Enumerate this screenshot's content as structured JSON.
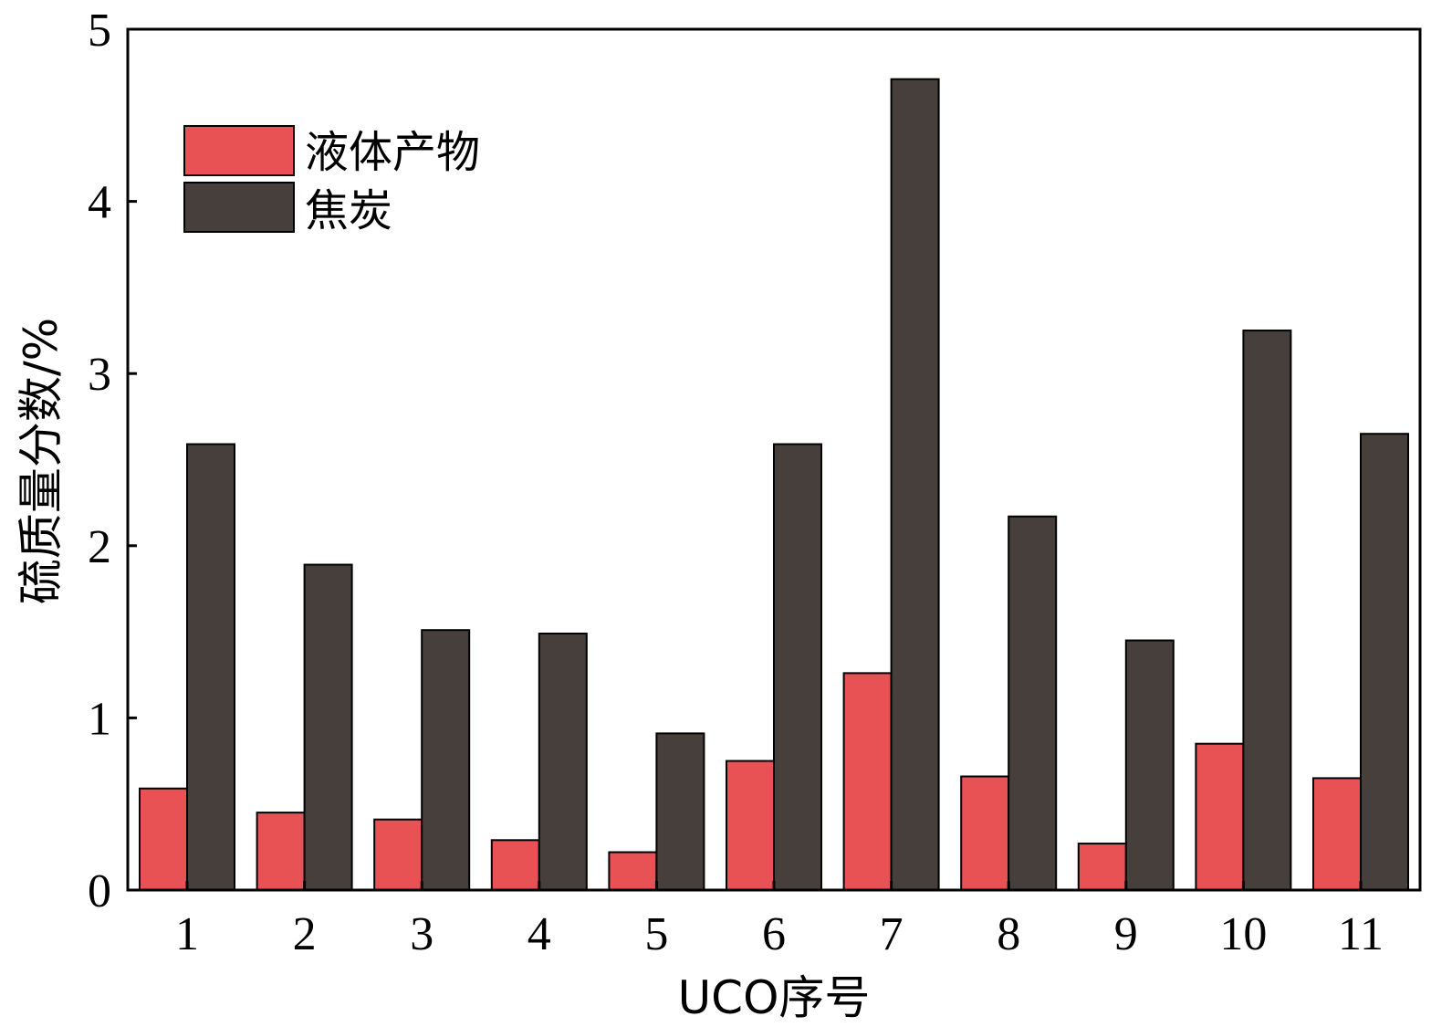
{
  "chart_data": {
    "type": "bar",
    "categories": [
      "1",
      "2",
      "3",
      "4",
      "5",
      "6",
      "7",
      "8",
      "9",
      "10",
      "11"
    ],
    "series": [
      {
        "name": "液体产物",
        "color": "#e85254",
        "values": [
          0.59,
          0.45,
          0.41,
          0.29,
          0.22,
          0.75,
          1.26,
          0.66,
          0.27,
          0.85,
          0.65
        ]
      },
      {
        "name": "焦炭",
        "color": "#463f3b",
        "values": [
          2.59,
          1.89,
          1.51,
          1.49,
          0.91,
          2.59,
          4.71,
          2.17,
          1.45,
          3.25,
          2.65
        ]
      }
    ],
    "xlabel": "UCO序号",
    "ylabel": "硫质量分数/%",
    "ylim": [
      0,
      5
    ],
    "yticks": [
      "0",
      "1",
      "2",
      "3",
      "4",
      "5"
    ],
    "grid": false,
    "legend": "top-left"
  }
}
